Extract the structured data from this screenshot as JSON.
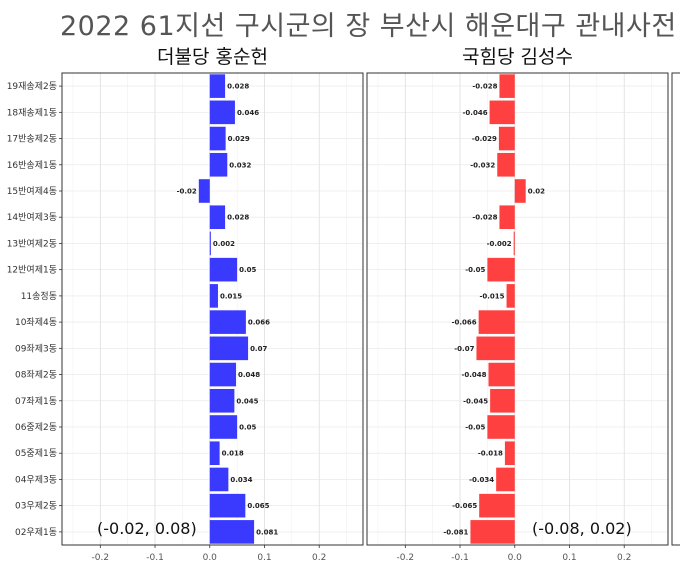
{
  "title": "2022 61지선 구시군의 장 부산시 해운대구 관내사전",
  "chart_data": {
    "type": "bar",
    "orientation": "horizontal",
    "categories": [
      "19재송제2동",
      "18재송제1동",
      "17반송제2동",
      "16반송제1동",
      "15반여제4동",
      "14반여제3동",
      "13반여제2동",
      "12반여제1동",
      "11송정동",
      "10좌제4동",
      "09좌제3동",
      "08좌제2동",
      "07좌제1동",
      "06중제2동",
      "05중제1동",
      "04우제3동",
      "03우제2동",
      "02우제1동"
    ],
    "xlim": [
      -0.27,
      0.28
    ],
    "x_ticks": [
      "-0.2",
      "-0.1",
      "0.0",
      "0.1",
      "0.2"
    ],
    "grid": true,
    "series": [
      {
        "name": "더불당 홍순헌",
        "color": "#3a3aff",
        "range_label": "(-0.02, 0.08)",
        "values": [
          0.028,
          0.046,
          0.029,
          0.032,
          -0.02,
          0.028,
          0.002,
          0.05,
          0.015,
          0.066,
          0.07,
          0.048,
          0.045,
          0.05,
          0.018,
          0.034,
          0.065,
          0.081
        ],
        "value_labels": [
          "0.028",
          "0.046",
          "0.029",
          "0.032",
          "-0.02",
          "0.028",
          "0.002",
          "0.05",
          "0.015",
          "0.066",
          "0.07",
          "0.048",
          "0.045",
          "0.05",
          "0.018",
          "0.034",
          "0.065",
          "0.081"
        ]
      },
      {
        "name": "국힘당 김성수",
        "color": "#ff4040",
        "range_label": "(-0.08, 0.02)",
        "values": [
          -0.028,
          -0.046,
          -0.029,
          -0.032,
          0.02,
          -0.028,
          -0.002,
          -0.05,
          -0.015,
          -0.066,
          -0.07,
          -0.048,
          -0.045,
          -0.05,
          -0.018,
          -0.034,
          -0.065,
          -0.081
        ],
        "value_labels": [
          "-0.028",
          "-0.046",
          "-0.029",
          "-0.032",
          "0.02",
          "-0.028",
          "-0.002",
          "-0.05",
          "-0.015",
          "-0.066",
          "-0.07",
          "-0.048",
          "-0.045",
          "-0.05",
          "-0.018",
          "-0.034",
          "-0.065",
          "-0.081"
        ]
      }
    ]
  }
}
